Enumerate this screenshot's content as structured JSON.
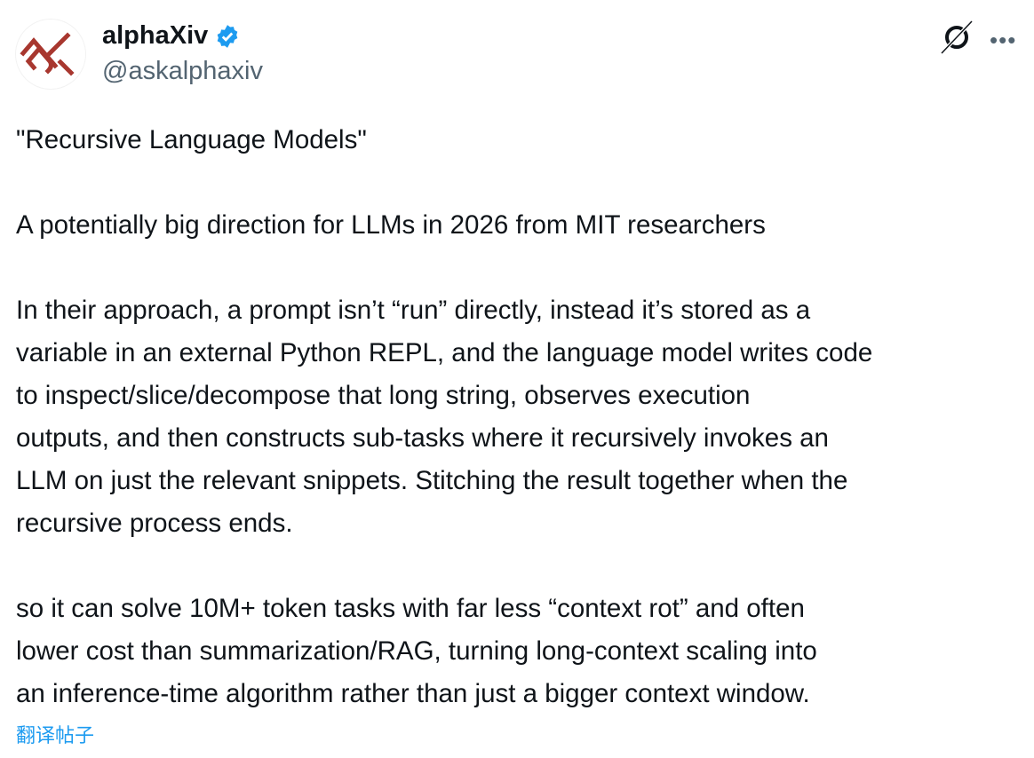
{
  "author": {
    "name": "alphaXiv",
    "handle": "@askalphaxiv",
    "verified": true,
    "logo_color": "#a8372f",
    "badge_color": "#1d9bf0"
  },
  "actions": {
    "grok_icon": "grok-icon",
    "more_icon": "more-icon",
    "more_label": "•••"
  },
  "post": {
    "lines": [
      "\"Recursive Language Models\"",
      "",
      "A potentially big direction for LLMs in 2026 from MIT researchers",
      "",
      "In their approach, a prompt isn’t “run” directly, instead it’s stored as a",
      "variable in an external Python REPL, and the language model writes code",
      "to inspect/slice/decompose that long string, observes execution",
      "outputs, and then constructs sub-tasks where it recursively invokes an",
      "LLM on just the relevant snippets. Stitching the result together when the",
      "recursive process ends.",
      "",
      "so it can solve 10M+ token tasks with far less “context rot” and often",
      "lower cost than summarization/RAG, turning long-context scaling into",
      "an inference-time algorithm rather than just a bigger context window."
    ]
  },
  "translate_label": "翻译帖子"
}
